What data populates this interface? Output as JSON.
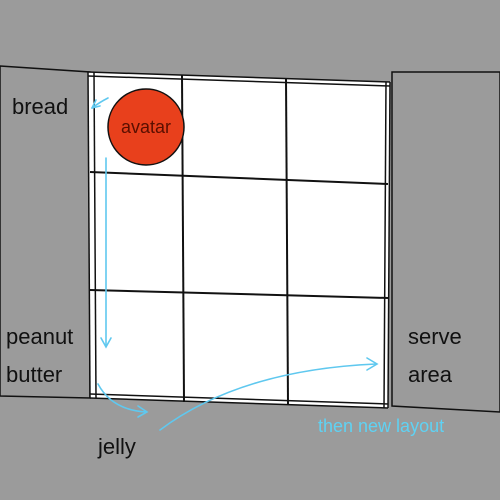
{
  "colors": {
    "wall": "#9b9b9b",
    "floor": "#ffffff",
    "grid_line": "#111111",
    "avatar_fill": "#e8401c",
    "avatar_text": "#5a0f00",
    "arrow": "#5fc8ef",
    "note_text": "#5fd2f3"
  },
  "labels": {
    "bread": "bread",
    "peanut": "peanut",
    "butter": "butter",
    "jelly": "jelly",
    "serve": "serve",
    "area": "area"
  },
  "avatar": {
    "label": "avatar",
    "icon": "circle"
  },
  "note": "then new layout"
}
